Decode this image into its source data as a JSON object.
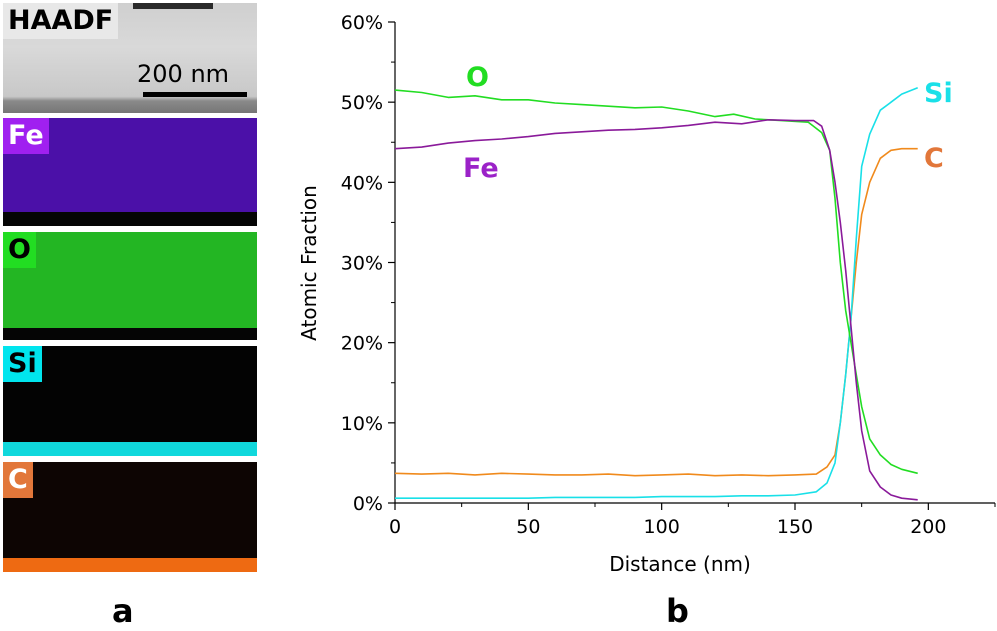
{
  "panel_a": {
    "letter": "a",
    "haadf": {
      "label": "HAADF",
      "scale_bar": "200 nm"
    },
    "maps": [
      {
        "label": "Fe",
        "label_bg": "#a020f0",
        "label_color": "#ffffff",
        "fill": "#4b10a8",
        "band": "#050505"
      },
      {
        "label": "O",
        "label_bg": "#22dd22",
        "label_color": "#000000",
        "fill": "#23b623",
        "band": "#050505"
      },
      {
        "label": "Si",
        "label_bg": "#00e5ee",
        "label_color": "#000000",
        "fill": "#030303",
        "band": "#10d8dc"
      },
      {
        "label": "C",
        "label_bg": "#e2773a",
        "label_color": "#ffffff",
        "fill": "#0d0503",
        "band": "#ee6a12"
      }
    ]
  },
  "panel_b": {
    "letter": "b"
  },
  "chart_data": {
    "type": "line",
    "xlabel": "Distance (nm)",
    "ylabel": "Atomic Fraction",
    "xlim": [
      0,
      225
    ],
    "ylim": [
      0,
      0.6
    ],
    "x_ticks": [
      0,
      50,
      100,
      150,
      200
    ],
    "y_ticks": [
      0,
      0.1,
      0.2,
      0.3,
      0.4,
      0.5,
      0.6
    ],
    "y_tick_labels": [
      "0%",
      "10%",
      "20%",
      "30%",
      "40%",
      "50%",
      "60%"
    ],
    "x_tick_labels": [
      "0",
      "50",
      "100",
      "150",
      "200"
    ],
    "series": [
      {
        "name": "O",
        "color": "#22dd22",
        "label_color": "#22dd22",
        "x": [
          0,
          10,
          20,
          30,
          40,
          50,
          60,
          70,
          80,
          90,
          100,
          110,
          120,
          127,
          135,
          145,
          155,
          160,
          163,
          165,
          167,
          169,
          171,
          173,
          175,
          178,
          182,
          186,
          190,
          196
        ],
        "y": [
          0.515,
          0.512,
          0.506,
          0.508,
          0.503,
          0.503,
          0.499,
          0.497,
          0.495,
          0.493,
          0.494,
          0.489,
          0.482,
          0.485,
          0.479,
          0.477,
          0.475,
          0.462,
          0.44,
          0.38,
          0.3,
          0.24,
          0.2,
          0.16,
          0.12,
          0.08,
          0.06,
          0.048,
          0.042,
          0.037
        ]
      },
      {
        "name": "Fe",
        "color": "#8a1a9a",
        "label_color": "#9b22c8",
        "x": [
          0,
          10,
          20,
          30,
          40,
          50,
          60,
          70,
          80,
          90,
          100,
          110,
          120,
          130,
          140,
          150,
          157,
          160,
          163,
          165,
          167,
          169,
          171,
          173,
          175,
          178,
          182,
          186,
          190,
          196
        ],
        "y": [
          0.442,
          0.444,
          0.449,
          0.452,
          0.454,
          0.457,
          0.461,
          0.463,
          0.465,
          0.466,
          0.468,
          0.471,
          0.475,
          0.473,
          0.478,
          0.477,
          0.477,
          0.47,
          0.44,
          0.4,
          0.35,
          0.29,
          0.22,
          0.15,
          0.09,
          0.04,
          0.02,
          0.01,
          0.006,
          0.004
        ]
      },
      {
        "name": "Si",
        "color": "#19e0e8",
        "label_color": "#19e0e8",
        "x": [
          0,
          10,
          20,
          30,
          40,
          50,
          60,
          70,
          80,
          90,
          100,
          110,
          120,
          130,
          140,
          150,
          158,
          162,
          165,
          167,
          169,
          171,
          173,
          175,
          178,
          182,
          186,
          190,
          196
        ],
        "y": [
          0.006,
          0.006,
          0.006,
          0.006,
          0.006,
          0.006,
          0.007,
          0.007,
          0.007,
          0.007,
          0.008,
          0.008,
          0.008,
          0.009,
          0.009,
          0.01,
          0.014,
          0.025,
          0.05,
          0.1,
          0.16,
          0.23,
          0.33,
          0.42,
          0.46,
          0.49,
          0.5,
          0.51,
          0.518
        ]
      },
      {
        "name": "C",
        "color": "#f08a1c",
        "label_color": "#e2773a",
        "x": [
          0,
          10,
          20,
          30,
          40,
          50,
          60,
          70,
          80,
          90,
          100,
          110,
          120,
          130,
          140,
          150,
          158,
          162,
          165,
          167,
          169,
          171,
          173,
          175,
          178,
          182,
          186,
          190,
          196
        ],
        "y": [
          0.037,
          0.036,
          0.037,
          0.035,
          0.037,
          0.036,
          0.035,
          0.035,
          0.036,
          0.034,
          0.035,
          0.036,
          0.034,
          0.035,
          0.034,
          0.035,
          0.036,
          0.045,
          0.06,
          0.1,
          0.16,
          0.23,
          0.3,
          0.36,
          0.4,
          0.43,
          0.44,
          0.442,
          0.442
        ]
      }
    ]
  }
}
